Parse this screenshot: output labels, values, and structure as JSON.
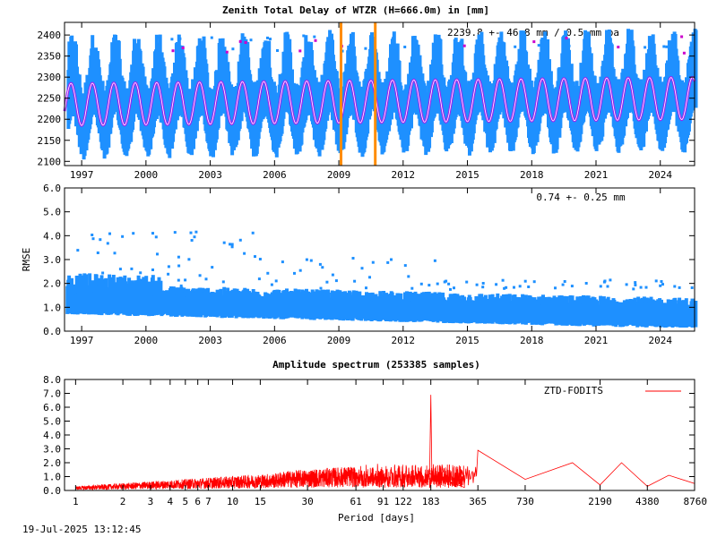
{
  "colors": {
    "blue": "#1e90ff",
    "purple": "#a020f0",
    "magenta": "#cc00cc",
    "orange": "#ff8c00",
    "red": "#ff0000"
  },
  "chart_data": [
    {
      "type": "scatter",
      "title": "Zenith Total Delay of WTZR (H=666.0m) in [mm]",
      "stat_text": "2239.8 +-  46.8 mm /  0.5 mm pa",
      "xlim": [
        1996.2,
        2025.6
      ],
      "ylim": [
        2090,
        2430
      ],
      "x_ticks": [
        "1997",
        "2000",
        "2003",
        "2006",
        "2009",
        "2012",
        "2015",
        "2018",
        "2021",
        "2024"
      ],
      "y_ticks": [
        "2100",
        "2150",
        "2200",
        "2250",
        "2300",
        "2350",
        "2400"
      ],
      "model": {
        "mean": 2239.8,
        "amplitude": 50,
        "trend_mm_pa": 0.5,
        "period_years": 1.0
      },
      "series": [
        {
          "name": "ZTD observations",
          "color": "#1e90ff",
          "range_low": 2120,
          "range_high": 2400
        },
        {
          "name": "Seasonal fit",
          "color": "#a020f0"
        },
        {
          "name": "Outliers",
          "color": "#cc00cc"
        }
      ],
      "markers": [
        2009.1,
        2010.7
      ]
    },
    {
      "type": "scatter",
      "ylabel": "RMSE",
      "stat_text": "0.74 +-  0.25 mm",
      "xlim": [
        1996.2,
        2025.6
      ],
      "ylim": [
        0.0,
        6.0
      ],
      "x_ticks": [
        "1997",
        "2000",
        "2003",
        "2006",
        "2009",
        "2012",
        "2015",
        "2018",
        "2021",
        "2024"
      ],
      "y_ticks": [
        "0.0",
        "1.0",
        "2.0",
        "3.0",
        "4.0",
        "5.0",
        "6.0"
      ],
      "baseline": {
        "start": 1.2,
        "end": 0.6
      },
      "series": [
        {
          "name": "RMSE",
          "color": "#1e90ff"
        }
      ]
    },
    {
      "type": "line",
      "title": "Amplitude spectrum (253385 samples)",
      "xlabel": "Period [days]",
      "legend": "ZTD-FODITS",
      "xscale": "log",
      "xlim": [
        0.85,
        8760
      ],
      "ylim": [
        0.0,
        8.0
      ],
      "x_ticks": [
        {
          "v": 1,
          "label": "1"
        },
        {
          "v": 2,
          "label": "2"
        },
        {
          "v": 3,
          "label": "3"
        },
        {
          "v": 4,
          "label": "4"
        },
        {
          "v": 5,
          "label": "5"
        },
        {
          "v": 6,
          "label": "6"
        },
        {
          "v": 7,
          "label": "7"
        },
        {
          "v": 10,
          "label": "10"
        },
        {
          "v": 15,
          "label": "15"
        },
        {
          "v": 30,
          "label": "30"
        },
        {
          "v": 61,
          "label": "61"
        },
        {
          "v": 91,
          "label": "91"
        },
        {
          "v": 122,
          "label": "122"
        },
        {
          "v": 183,
          "label": "183"
        },
        {
          "v": 365,
          "label": "365"
        },
        {
          "v": 730,
          "label": "730"
        },
        {
          "v": 2190,
          "label": "2190"
        },
        {
          "v": 4380,
          "label": "4380"
        },
        {
          "v": 8760,
          "label": "8760"
        }
      ],
      "y_ticks": [
        "0.0",
        "1.0",
        "2.0",
        "3.0",
        "4.0",
        "5.0",
        "6.0",
        "7.0",
        "8.0"
      ],
      "peaks": [
        {
          "period": 183,
          "amplitude": 6.9
        },
        {
          "period": 365,
          "amplitude": 2.9
        },
        {
          "period": 730,
          "amplitude": 0.8
        },
        {
          "period": 1460,
          "amplitude": 2.0
        },
        {
          "period": 2190,
          "amplitude": 0.4
        },
        {
          "period": 3000,
          "amplitude": 2.0
        },
        {
          "period": 4380,
          "amplitude": 0.3
        },
        {
          "period": 6000,
          "amplitude": 1.1
        },
        {
          "period": 8760,
          "amplitude": 0.5
        }
      ],
      "series": [
        {
          "name": "ZTD-FODITS",
          "color": "#ff0000"
        }
      ]
    }
  ],
  "footer": {
    "timestamp": "19-Jul-2025 13:12:45"
  }
}
